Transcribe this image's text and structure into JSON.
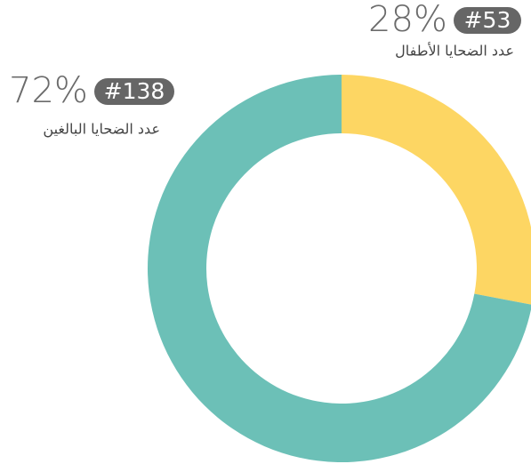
{
  "chart_data": {
    "type": "donut",
    "categories": [
      "عدد الضحايا الأطفال",
      "عدد الضحايا البالغين"
    ],
    "values": [
      28,
      72
    ],
    "value_labels": [
      "28%",
      "72%"
    ],
    "counts": [
      53,
      138
    ],
    "count_labels": [
      "#53",
      "#138"
    ],
    "colors": [
      "#fdd663",
      "#6cc0b7"
    ]
  }
}
